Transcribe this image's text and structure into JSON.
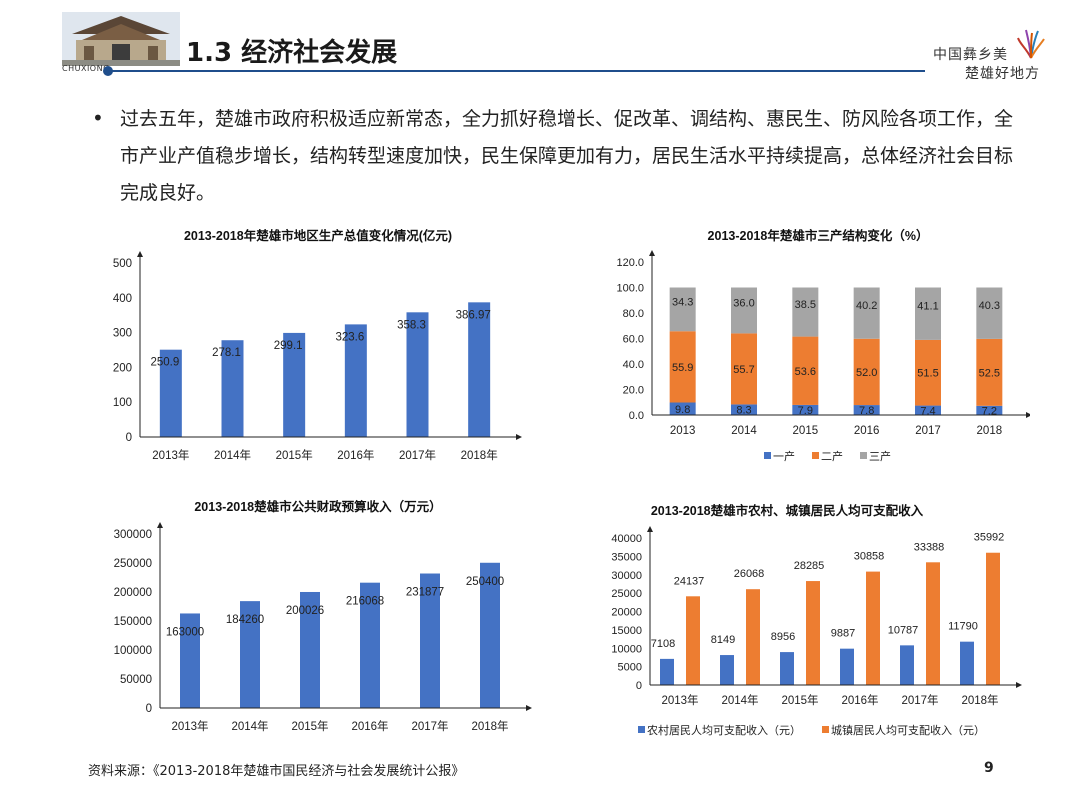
{
  "header": {
    "logo_text": "CHUXIONG",
    "title": "1.3 经济社会发展",
    "slogan_line1": "中国彝乡美",
    "slogan_line2": "楚雄好地方"
  },
  "intro": {
    "bullet": "•",
    "text": "过去五年，楚雄市政府积极适应新常态，全力抓好稳增长、促改革、调结构、惠民生、防风险各项工作，全市产业产值稳步增长，结构转型速度加快，民生保障更加有力，居民生活水平持续提高，总体经济社会目标完成良好。"
  },
  "colors": {
    "blue": "#4472c4",
    "orange": "#ed7d31",
    "gray": "#a5a5a5",
    "title_blue": "#1f4e8c"
  },
  "chart_data": [
    {
      "id": "gdp",
      "type": "bar",
      "title": "2013-2018年楚雄市地区生产总值变化情况(亿元)",
      "categories": [
        "2013年",
        "2014年",
        "2015年",
        "2016年",
        "2017年",
        "2018年"
      ],
      "values": [
        250.9,
        278.1,
        299.1,
        323.6,
        358.3,
        386.97
      ],
      "data_labels": [
        "250.9",
        "278.1",
        "299.1",
        "323.6",
        "358.3",
        "386.97"
      ],
      "ylim": [
        0,
        500
      ],
      "yticks": [
        "0",
        "100",
        "200",
        "300",
        "400",
        "500"
      ],
      "grid": false
    },
    {
      "id": "structure",
      "type": "bar",
      "stacked": true,
      "title": "2013-2018年楚雄市三产结构变化（%）",
      "categories": [
        "2013",
        "2014",
        "2015",
        "2016",
        "2017",
        "2018"
      ],
      "series": [
        {
          "name": "一产",
          "values": [
            9.8,
            8.3,
            7.9,
            7.8,
            7.4,
            7.2
          ],
          "labels": [
            "9.8",
            "8.3",
            "7.9",
            "7.8",
            "7.4",
            "7.2"
          ]
        },
        {
          "name": "二产",
          "values": [
            55.9,
            55.7,
            53.6,
            52.0,
            51.5,
            52.5
          ],
          "labels": [
            "55.9",
            "55.7",
            "53.6",
            "52.0",
            "51.5",
            "52.5"
          ]
        },
        {
          "name": "三产",
          "values": [
            34.3,
            36.0,
            38.5,
            40.2,
            41.1,
            40.3
          ],
          "labels": [
            "34.3",
            "36.0",
            "38.5",
            "40.2",
            "41.1",
            "40.3"
          ]
        }
      ],
      "ylim": [
        0,
        120
      ],
      "yticks": [
        "0.0",
        "20.0",
        "40.0",
        "60.0",
        "80.0",
        "100.0",
        "120.0"
      ],
      "legend": "bottom",
      "grid": false
    },
    {
      "id": "fiscal",
      "type": "bar",
      "title": "2013-2018楚雄市公共财政预算收入（万元）",
      "categories": [
        "2013年",
        "2014年",
        "2015年",
        "2016年",
        "2017年",
        "2018年"
      ],
      "values": [
        163000,
        184260,
        200026,
        216068,
        231877,
        250400
      ],
      "data_labels": [
        "163000",
        "184260",
        "200026",
        "216068",
        "231877",
        "250400"
      ],
      "ylim": [
        0,
        300000
      ],
      "yticks": [
        "0",
        "50000",
        "100000",
        "150000",
        "200000",
        "250000",
        "300000"
      ],
      "grid": false
    },
    {
      "id": "income",
      "type": "bar",
      "title": "2013-2018楚雄市农村、城镇居民人均可支配收入",
      "categories": [
        "2013年",
        "2014年",
        "2015年",
        "2016年",
        "2017年",
        "2018年"
      ],
      "series": [
        {
          "name": "农村居民人均可支配收入（元）",
          "values": [
            7108,
            8149,
            8956,
            9887,
            10787,
            11790
          ],
          "labels": [
            "7108",
            "8149",
            "8956",
            "9887",
            "10787",
            "11790"
          ]
        },
        {
          "name": "城镇居民人均可支配收入（元）",
          "values": [
            24137,
            26068,
            28285,
            30858,
            33388,
            35992
          ],
          "labels": [
            "24137",
            "26068",
            "28285",
            "30858",
            "33388",
            "35992"
          ]
        }
      ],
      "ylim": [
        0,
        40000
      ],
      "yticks": [
        "0",
        "5000",
        "10000",
        "15000",
        "20000",
        "25000",
        "30000",
        "35000",
        "40000"
      ],
      "legend": "bottom",
      "grid": false
    }
  ],
  "footer": {
    "source": "资料来源：《2013-2018年楚雄市国民经济与社会发展统计公报》",
    "page_number": "9"
  }
}
